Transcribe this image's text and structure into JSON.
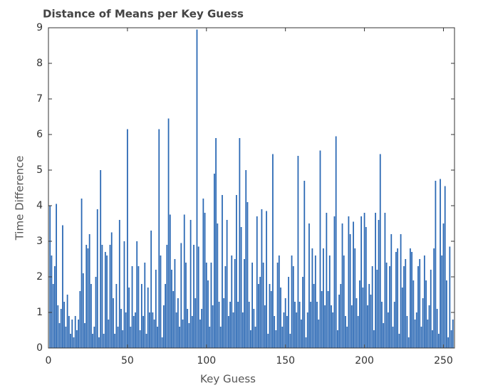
{
  "chart_data": {
    "type": "bar",
    "title": "Distance of Means per Key Guess",
    "xlabel": "Key Guess",
    "ylabel": "Time Difference",
    "color": "#2a68b4",
    "x": [
      1,
      2,
      3,
      4,
      5,
      6,
      7,
      8,
      9,
      10,
      11,
      12,
      13,
      14,
      15,
      16,
      17,
      18,
      19,
      20,
      21,
      22,
      23,
      24,
      25,
      26,
      27,
      28,
      29,
      30,
      31,
      32,
      33,
      34,
      35,
      36,
      37,
      38,
      39,
      40,
      41,
      42,
      43,
      44,
      45,
      46,
      47,
      48,
      49,
      50,
      51,
      52,
      53,
      54,
      55,
      56,
      57,
      58,
      59,
      60,
      61,
      62,
      63,
      64,
      65,
      66,
      67,
      68,
      69,
      70,
      71,
      72,
      73,
      74,
      75,
      76,
      77,
      78,
      79,
      80,
      81,
      82,
      83,
      84,
      85,
      86,
      87,
      88,
      89,
      90,
      91,
      92,
      93,
      94,
      95,
      96,
      97,
      98,
      99,
      100,
      101,
      102,
      103,
      104,
      105,
      106,
      107,
      108,
      109,
      110,
      111,
      112,
      113,
      114,
      115,
      116,
      117,
      118,
      119,
      120,
      121,
      122,
      123,
      124,
      125,
      126,
      127,
      128,
      129,
      130,
      131,
      132,
      133,
      134,
      135,
      136,
      137,
      138,
      139,
      140,
      141,
      142,
      143,
      144,
      145,
      146,
      147,
      148,
      149,
      150,
      151,
      152,
      153,
      154,
      155,
      156,
      157,
      158,
      159,
      160,
      161,
      162,
      163,
      164,
      165,
      166,
      167,
      168,
      169,
      170,
      171,
      172,
      173,
      174,
      175,
      176,
      177,
      178,
      179,
      180,
      181,
      182,
      183,
      184,
      185,
      186,
      187,
      188,
      189,
      190,
      191,
      192,
      193,
      194,
      195,
      196,
      197,
      198,
      199,
      200,
      201,
      202,
      203,
      204,
      205,
      206,
      207,
      208,
      209,
      210,
      211,
      212,
      213,
      214,
      215,
      216,
      217,
      218,
      219,
      220,
      221,
      222,
      223,
      224,
      225,
      226,
      227,
      228,
      229,
      230,
      231,
      232,
      233,
      234,
      235,
      236,
      237,
      238,
      239,
      240,
      241,
      242,
      243,
      244,
      245,
      246,
      247,
      248,
      249,
      250,
      251,
      252,
      253,
      254,
      255,
      256
    ],
    "values": [
      4.0,
      2.6,
      1.8,
      2.3,
      4.05,
      1.2,
      0.7,
      1.1,
      3.45,
      1.3,
      0.6,
      1.5,
      0.9,
      0.4,
      0.8,
      0.3,
      0.9,
      0.5,
      0.8,
      1.6,
      4.2,
      2.1,
      0.7,
      2.9,
      2.8,
      3.2,
      1.8,
      0.4,
      0.6,
      2.0,
      3.9,
      0.3,
      5.0,
      2.9,
      0.4,
      2.7,
      2.6,
      0.8,
      2.9,
      3.25,
      1.4,
      0.4,
      1.8,
      0.6,
      3.6,
      1.1,
      0.5,
      3.0,
      1.0,
      6.15,
      1.7,
      0.6,
      2.3,
      0.9,
      1.0,
      3.0,
      2.3,
      0.5,
      1.8,
      0.9,
      2.4,
      0.4,
      1.7,
      1.0,
      3.3,
      1.0,
      0.8,
      2.2,
      0.6,
      6.15,
      2.6,
      0.3,
      1.2,
      1.8,
      2.9,
      6.45,
      3.75,
      2.2,
      1.6,
      2.5,
      1.0,
      1.4,
      0.6,
      2.95,
      0.8,
      3.75,
      2.4,
      1.1,
      0.7,
      3.6,
      0.9,
      2.9,
      1.4,
      8.95,
      2.85,
      0.8,
      1.1,
      4.2,
      3.8,
      2.4,
      1.9,
      0.6,
      2.4,
      1.2,
      4.9,
      5.9,
      3.5,
      1.3,
      0.6,
      4.3,
      1.4,
      2.3,
      3.6,
      0.9,
      1.3,
      2.6,
      1.0,
      2.5,
      4.3,
      1.3,
      5.9,
      3.4,
      1.0,
      2.5,
      5.0,
      4.1,
      1.3,
      0.5,
      2.4,
      1.1,
      0.6,
      3.7,
      1.8,
      2.0,
      3.9,
      2.4,
      1.2,
      3.85,
      0.4,
      1.8,
      1.6,
      5.45,
      0.9,
      0.5,
      2.4,
      2.6,
      1.7,
      0.6,
      1.0,
      1.4,
      0.9,
      2.0,
      0.4,
      2.6,
      2.3,
      1.3,
      1.0,
      5.4,
      1.3,
      0.8,
      2.0,
      4.7,
      0.3,
      1.0,
      3.5,
      1.3,
      2.8,
      1.8,
      2.6,
      1.3,
      0.8,
      5.55,
      1.6,
      2.8,
      1.2,
      3.8,
      1.6,
      2.6,
      1.2,
      1.0,
      3.7,
      5.95,
      0.5,
      1.5,
      1.8,
      3.5,
      2.6,
      0.9,
      0.6,
      3.7,
      3.2,
      1.2,
      3.55,
      2.8,
      1.4,
      0.9,
      1.9,
      3.7,
      1.7,
      3.8,
      3.4,
      1.2,
      1.8,
      1.5,
      2.3,
      0.5,
      3.8,
      2.2,
      3.6,
      5.45,
      1.3,
      0.7,
      3.8,
      2.4,
      1.0,
      2.3,
      3.2,
      0.6,
      1.3,
      2.7,
      2.8,
      0.4,
      3.2,
      1.7,
      2.3,
      2.5,
      0.9,
      0.3,
      2.8,
      2.7,
      1.9,
      0.8,
      1.0,
      2.3,
      2.5,
      0.6,
      1.4,
      2.6,
      1.9,
      0.8,
      1.2,
      2.2,
      0.5,
      2.8,
      4.7,
      1.1,
      0.4,
      4.75,
      2.6,
      3.5,
      4.55,
      1.9,
      0.3,
      2.85,
      0.5,
      0.8
    ],
    "xlim": [
      0,
      257
    ],
    "xticks": [
      0,
      50,
      100,
      150,
      200,
      250
    ],
    "ylim": [
      0,
      9
    ],
    "yticks": [
      0,
      1,
      2,
      3,
      4,
      5,
      6,
      7,
      8,
      9
    ]
  }
}
